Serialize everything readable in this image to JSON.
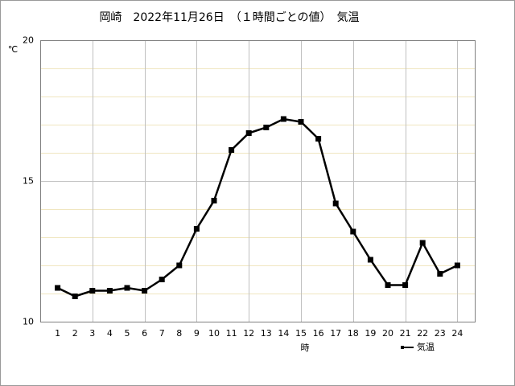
{
  "chart_data": {
    "type": "line",
    "title": "岡崎　2022年11月26日　（１時間ごとの値）　気温",
    "xlabel": "時",
    "ylabel": "℃",
    "x": [
      1,
      2,
      3,
      4,
      5,
      6,
      7,
      8,
      9,
      10,
      11,
      12,
      13,
      14,
      15,
      16,
      17,
      18,
      19,
      20,
      21,
      22,
      23,
      24
    ],
    "series": [
      {
        "name": "気温",
        "color": "#000000",
        "values": [
          11.2,
          10.9,
          11.1,
          11.1,
          11.2,
          11.1,
          11.5,
          12.0,
          13.3,
          14.3,
          16.1,
          16.7,
          16.9,
          17.2,
          17.1,
          16.5,
          14.2,
          13.2,
          12.2,
          11.3,
          11.3,
          12.8,
          11.7,
          12.0
        ]
      }
    ],
    "xlim": [
      0,
      25
    ],
    "xticks": [
      1,
      2,
      3,
      4,
      5,
      6,
      7,
      8,
      9,
      10,
      11,
      12,
      13,
      14,
      15,
      16,
      17,
      18,
      19,
      20,
      21,
      22,
      23,
      24
    ],
    "xgrid": [
      3,
      6,
      9,
      12,
      15,
      18,
      21,
      24
    ],
    "ylim": [
      10,
      20
    ],
    "yticks": [
      10,
      15,
      20
    ],
    "yminorgrid": [
      11,
      12,
      13,
      14,
      16,
      17,
      18,
      19
    ],
    "legend": "bottom-right"
  }
}
